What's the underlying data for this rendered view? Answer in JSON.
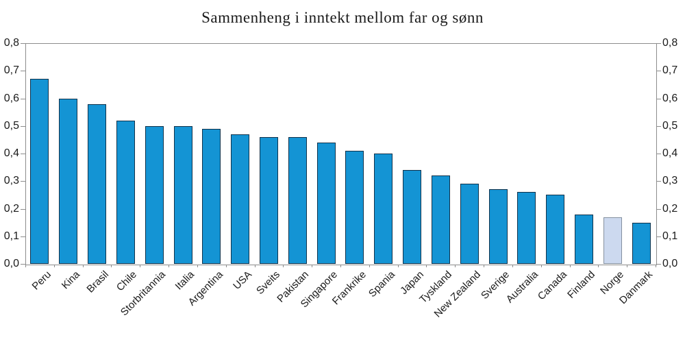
{
  "title": "Sammenheng i inntekt mellom far og sønn",
  "chart_data": {
    "type": "bar",
    "title": "Sammenheng i inntekt mellom far og sønn",
    "categories": [
      "Peru",
      "Kina",
      "Brasil",
      "Chile",
      "Storbritannia",
      "Italia",
      "Argentina",
      "USA",
      "Sveits",
      "Pakistan",
      "Singapore",
      "Frankrike",
      "Spania",
      "Japan",
      "Tyskland",
      "New Zealand",
      "Sverige",
      "Australia",
      "Canada",
      "Finland",
      "Norge",
      "Danmark"
    ],
    "values": [
      0.67,
      0.6,
      0.58,
      0.52,
      0.5,
      0.5,
      0.49,
      0.47,
      0.46,
      0.46,
      0.44,
      0.41,
      0.4,
      0.34,
      0.32,
      0.29,
      0.27,
      0.26,
      0.25,
      0.18,
      0.17,
      0.15
    ],
    "highlighted_category": "Norge",
    "xlabel": "",
    "ylabel": "",
    "ylim": [
      0,
      0.8
    ],
    "ytick_values": [
      0.0,
      0.1,
      0.2,
      0.3,
      0.4,
      0.5,
      0.6,
      0.7,
      0.8
    ],
    "ytick_labels": [
      "0,0",
      "0,1",
      "0,2",
      "0,3",
      "0,4",
      "0,5",
      "0,6",
      "0,7",
      "0,8"
    ],
    "y_axis_sides": [
      "left",
      "right"
    ],
    "grid": false,
    "legend": false,
    "decimal_separator": ",",
    "colors": {
      "bar_fill": "#1494d4",
      "bar_border": "#10314a",
      "highlight_fill": "#ccd9ef",
      "highlight_border": "#84909f",
      "axis": "#8c8c8c",
      "text": "#1a1a1a"
    }
  }
}
